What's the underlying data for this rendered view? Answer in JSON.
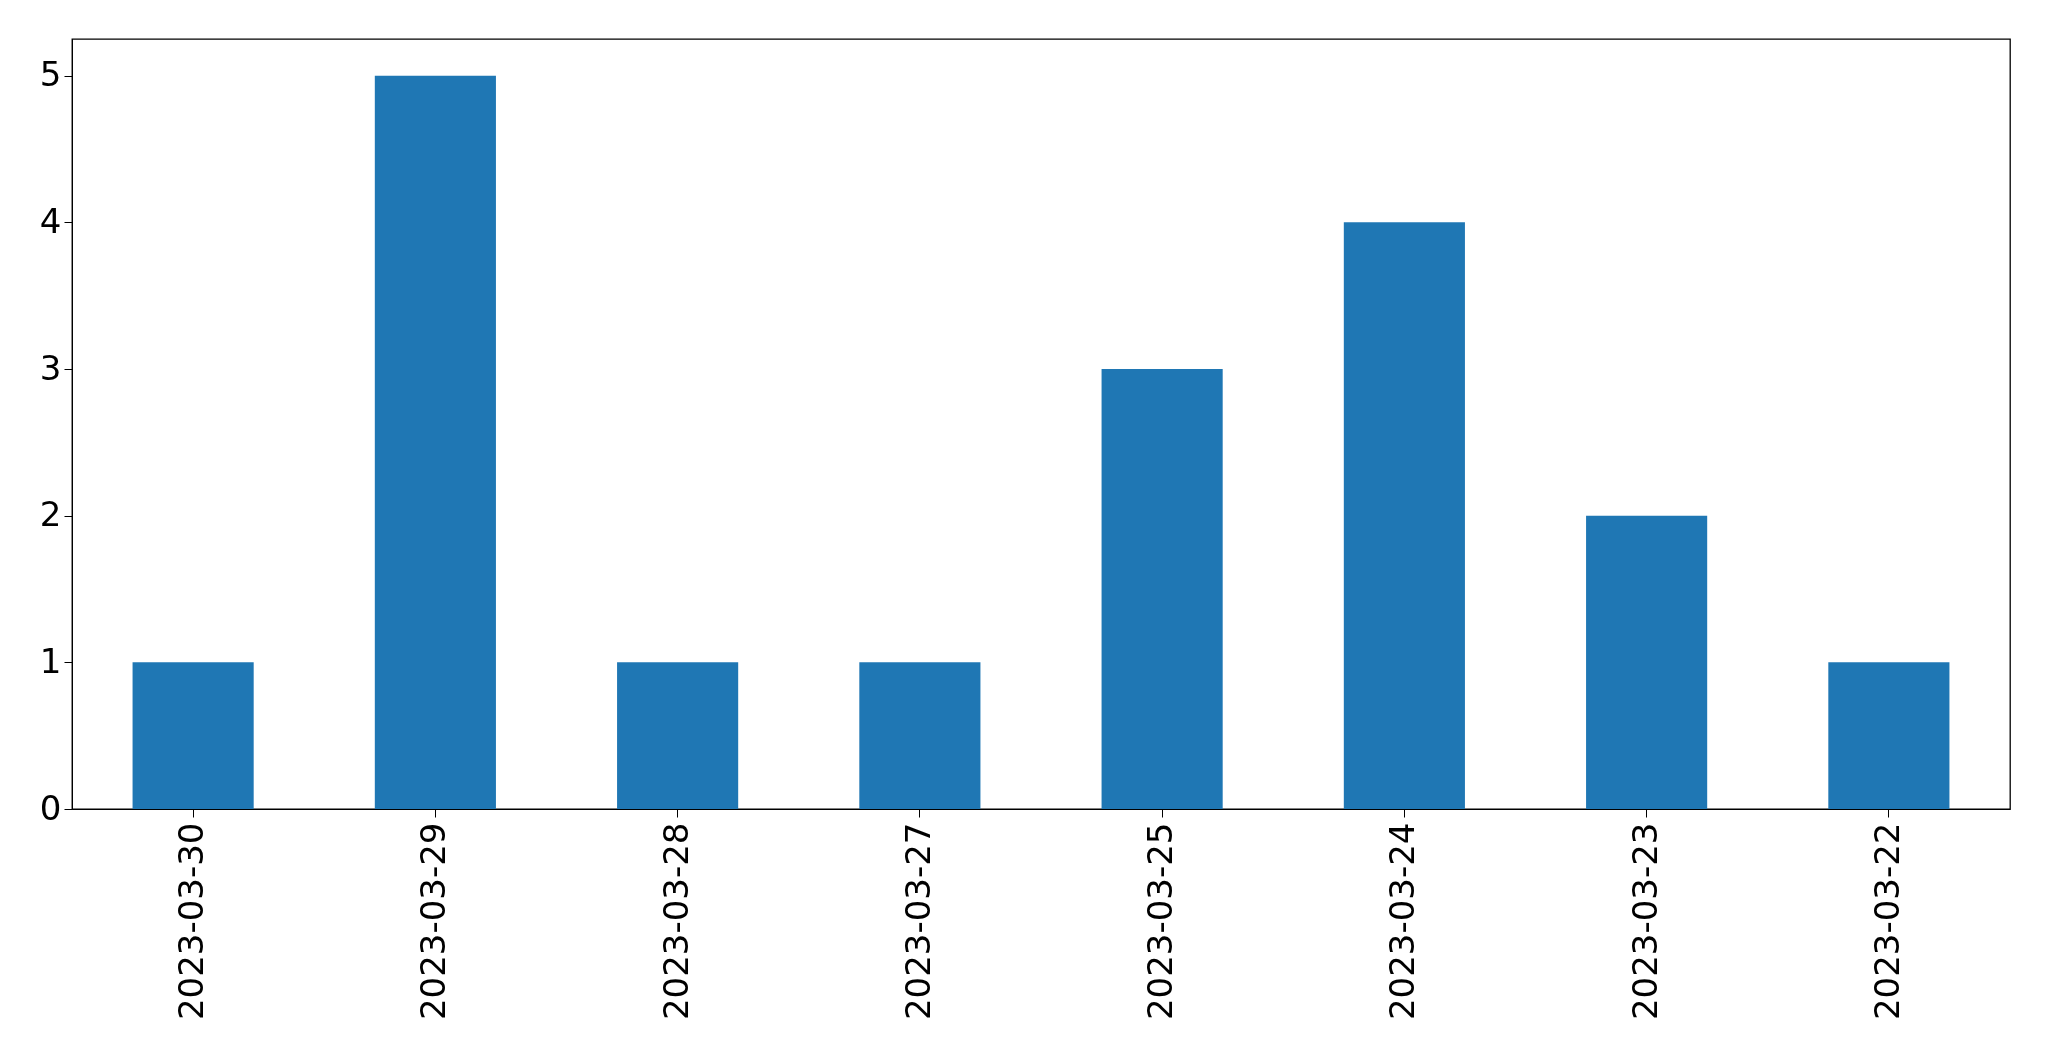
{
  "chart_data": {
    "type": "bar",
    "categories": [
      "2023-03-30",
      "2023-03-29",
      "2023-03-28",
      "2023-03-27",
      "2023-03-25",
      "2023-03-24",
      "2023-03-23",
      "2023-03-22"
    ],
    "values": [
      1,
      5,
      1,
      1,
      3,
      4,
      2,
      1
    ],
    "color": "#1f77b4",
    "ylim": [
      0,
      5.25
    ],
    "yticks": [
      0,
      1,
      2,
      3,
      4,
      5
    ],
    "grid": false
  }
}
